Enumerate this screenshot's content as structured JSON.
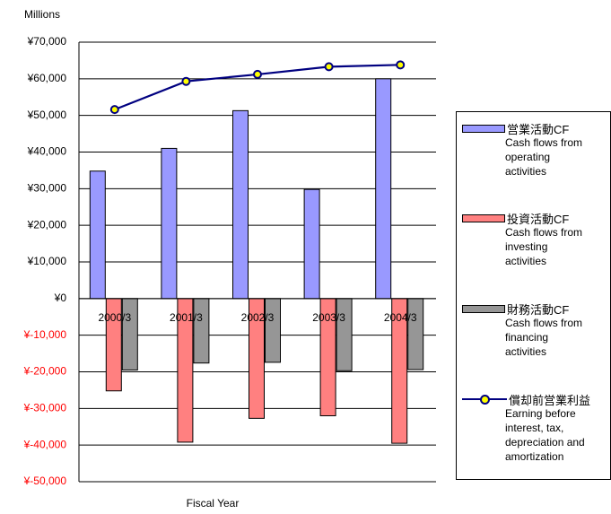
{
  "chart_data": {
    "type": "bar",
    "unit_label": "Millions",
    "xlabel": "Fiscal Year",
    "ylim": [
      -50000,
      70000
    ],
    "ytick_step": 10000,
    "yticks": [
      "¥70,000",
      "¥60,000",
      "¥50,000",
      "¥40,000",
      "¥30,000",
      "¥20,000",
      "¥10,000",
      "¥0",
      "¥-10,000",
      "¥-20,000",
      "¥-30,000",
      "¥-40,000",
      "¥-50,000"
    ],
    "negative_tick_color": "#ff0000",
    "grid": "horizontal",
    "categories": [
      "2000/3",
      "2001/3",
      "2002/3",
      "2003/3",
      "2004/3"
    ],
    "legend_position": "right",
    "series": [
      {
        "name": "営業活動CF",
        "description": "Cash flows from\noperating\nactivities",
        "type": "bar",
        "color": "#9999ff",
        "values": [
          34800,
          41000,
          51300,
          29800,
          60000
        ]
      },
      {
        "name": "投資活動CF",
        "description": "Cash flows from\ninvesting\nactivities",
        "type": "bar",
        "color": "#ff8080",
        "values": [
          -25200,
          -39200,
          -32700,
          -32000,
          -39500
        ]
      },
      {
        "name": "財務活動CF",
        "description": "Cash flows from\nfinancing\nactivities",
        "type": "bar",
        "color": "#969696",
        "values": [
          -19500,
          -17600,
          -17400,
          -19700,
          -19400
        ]
      },
      {
        "name": "償却前営業利益",
        "description": "Earning before\ninterest, tax,\ndepreciation and\namortization",
        "type": "line",
        "color": "#000080",
        "marker_color": "#ffff00",
        "values": [
          51600,
          59300,
          61200,
          63300,
          63800
        ]
      }
    ]
  }
}
